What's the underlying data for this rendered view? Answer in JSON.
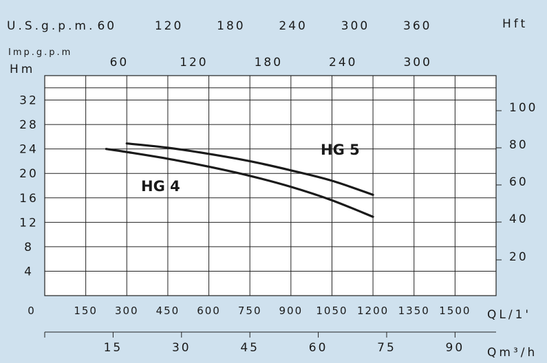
{
  "chart_data": {
    "type": "line",
    "title": "",
    "grid": true,
    "units": {
      "usgpm": "U.S.g.p.m.",
      "impgpm": "Imp.g.p.m",
      "hm": "Hm",
      "hft": "Hft",
      "ql": "QL/1'",
      "qm3h": "Qm³/h"
    },
    "axes": {
      "q_lmin": {
        "ticks": [
          0,
          150,
          300,
          450,
          600,
          750,
          900,
          1050,
          1200,
          1350,
          1500
        ],
        "range": [
          0,
          1650
        ]
      },
      "head_m": {
        "ticks": [
          0,
          4,
          8,
          12,
          16,
          20,
          24,
          28,
          32
        ],
        "range": [
          0,
          36
        ]
      },
      "usgpm": {
        "ticks": [
          60,
          120,
          180,
          240,
          300,
          360
        ]
      },
      "impgpm": {
        "ticks": [
          60,
          120,
          180,
          240,
          300
        ]
      },
      "qm3h": {
        "ticks": [
          15,
          30,
          45,
          60,
          75,
          90
        ],
        "range": [
          0,
          99
        ]
      },
      "head_ft": {
        "ticks": [
          20,
          40,
          60,
          80,
          100
        ]
      }
    },
    "series": [
      {
        "name": "HG 5",
        "x": [
          300,
          450,
          600,
          750,
          900,
          1050,
          1200
        ],
        "y": [
          24.9,
          24.2,
          23.2,
          22.0,
          20.5,
          18.8,
          16.5
        ]
      },
      {
        "name": "HG 4",
        "x": [
          225,
          300,
          450,
          600,
          750,
          900,
          1050,
          1200
        ],
        "y": [
          24.0,
          23.5,
          22.4,
          21.1,
          19.6,
          17.8,
          15.6,
          12.9
        ]
      }
    ]
  }
}
